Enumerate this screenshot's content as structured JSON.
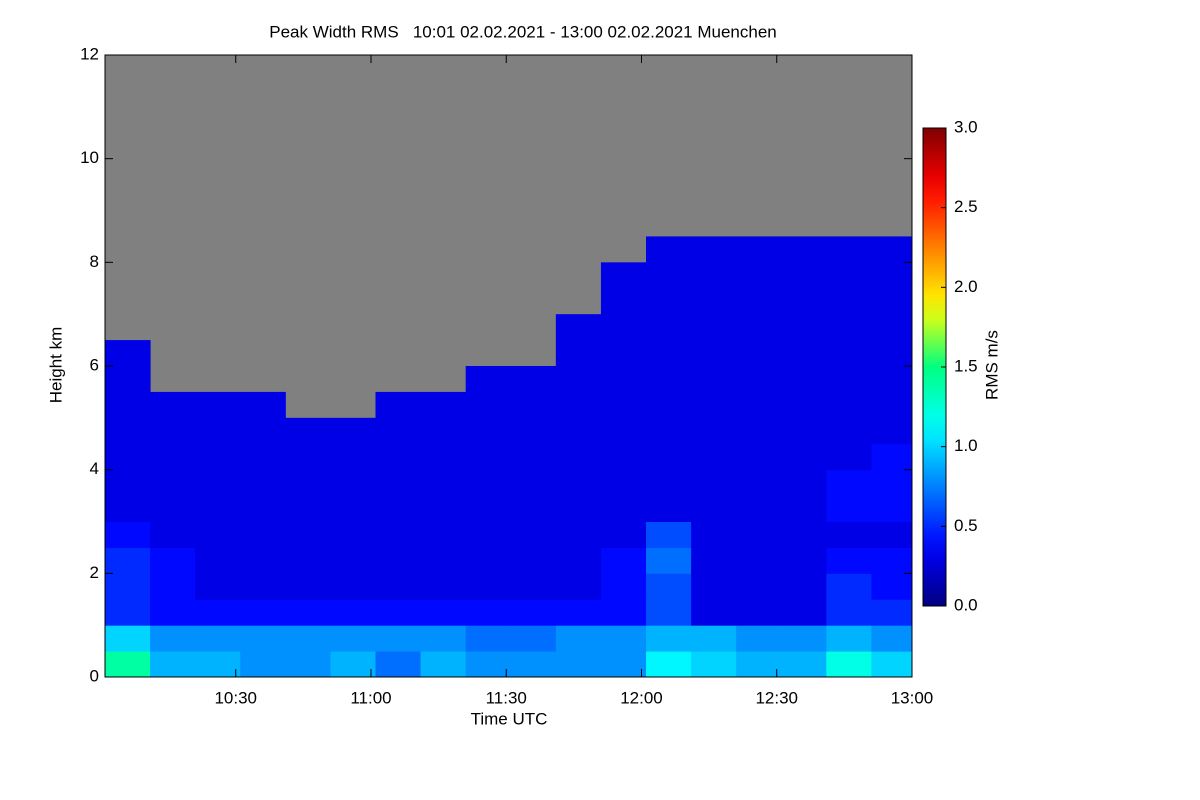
{
  "chart_data": {
    "type": "heatmap",
    "title": "Peak Width RMS   10:01 02.02.2021 - 13:00 02.02.2021 Muenchen",
    "x_label": "Time UTC",
    "y_label": "Height km",
    "colorbar_label": "RMS m/s",
    "colormap": "jet",
    "missing_color": "#808080",
    "xlim": [
      601,
      780
    ],
    "xticks": [
      {
        "value": 630,
        "label": "10:30"
      },
      {
        "value": 660,
        "label": "11:00"
      },
      {
        "value": 690,
        "label": "11:30"
      },
      {
        "value": 720,
        "label": "12:00"
      },
      {
        "value": 750,
        "label": "12:30"
      },
      {
        "value": 780,
        "label": "13:00"
      }
    ],
    "ylim": [
      0,
      12
    ],
    "yticks": [
      0,
      2,
      4,
      6,
      8,
      10,
      12
    ],
    "clim": [
      0,
      3
    ],
    "cticks": [
      {
        "value": 0,
        "label": "0.0"
      },
      {
        "value": 0.5,
        "label": "0.5"
      },
      {
        "value": 1,
        "label": "1.0"
      },
      {
        "value": 1.5,
        "label": "1.5"
      },
      {
        "value": 2,
        "label": "2.0"
      },
      {
        "value": 2.5,
        "label": "2.5"
      },
      {
        "value": 3,
        "label": "3.0"
      }
    ],
    "x_bins": [
      601,
      611,
      621,
      631,
      641,
      651,
      661,
      671,
      681,
      691,
      701,
      711,
      721,
      731,
      741,
      751,
      761,
      771,
      780
    ],
    "y_bins": [
      0,
      0.5,
      1,
      1.5,
      2,
      2.5,
      3,
      3.5,
      4,
      4.5,
      5,
      5.5,
      6,
      6.5,
      7,
      7.5,
      8,
      8.5,
      9,
      9.5,
      10,
      10.5,
      11,
      11.5,
      12
    ],
    "z": [
      [
        1.4,
        0.9,
        0.9,
        0.8,
        0.8,
        0.9,
        0.7,
        0.9,
        0.8,
        0.8,
        0.8,
        0.8,
        1.1,
        1.0,
        0.9,
        0.9,
        1.2,
        1.0
      ],
      [
        1.0,
        0.8,
        0.8,
        0.8,
        0.8,
        0.8,
        0.8,
        0.8,
        0.7,
        0.7,
        0.8,
        0.8,
        0.9,
        0.9,
        0.8,
        0.8,
        0.9,
        0.8
      ],
      [
        0.5,
        0.4,
        0.4,
        0.4,
        0.4,
        0.4,
        0.4,
        0.4,
        0.4,
        0.4,
        0.4,
        0.4,
        0.6,
        0.3,
        0.3,
        0.3,
        0.5,
        0.5
      ],
      [
        0.5,
        0.4,
        0.3,
        0.3,
        0.3,
        0.3,
        0.3,
        0.3,
        0.3,
        0.3,
        0.3,
        0.4,
        0.6,
        0.3,
        0.3,
        0.3,
        0.5,
        0.4
      ],
      [
        0.5,
        0.4,
        0.3,
        0.3,
        0.3,
        0.3,
        0.3,
        0.3,
        0.3,
        0.3,
        0.3,
        0.4,
        0.7,
        0.3,
        0.3,
        0.3,
        0.4,
        0.4
      ],
      [
        0.4,
        0.3,
        0.3,
        0.3,
        0.3,
        0.3,
        0.3,
        0.3,
        0.3,
        0.3,
        0.3,
        0.3,
        0.6,
        0.3,
        0.3,
        0.3,
        0.3,
        0.3
      ],
      [
        0.3,
        0.3,
        0.3,
        0.3,
        0.3,
        0.3,
        0.3,
        0.3,
        0.3,
        0.3,
        0.3,
        0.3,
        0.3,
        0.3,
        0.3,
        0.3,
        0.4,
        0.4
      ],
      [
        0.3,
        0.3,
        0.3,
        0.3,
        0.3,
        0.3,
        0.3,
        0.3,
        0.3,
        0.3,
        0.3,
        0.3,
        0.3,
        0.3,
        0.3,
        0.3,
        0.4,
        0.4
      ],
      [
        0.3,
        0.3,
        0.3,
        0.3,
        0.3,
        0.3,
        0.3,
        0.3,
        0.3,
        0.3,
        0.3,
        0.3,
        0.3,
        0.3,
        0.3,
        0.3,
        0.3,
        0.4
      ],
      [
        0.3,
        0.3,
        0.3,
        0.3,
        0.3,
        0.3,
        0.3,
        0.3,
        0.3,
        0.3,
        0.3,
        0.3,
        0.3,
        0.3,
        0.3,
        0.3,
        0.3,
        0.3
      ],
      [
        0.3,
        0.3,
        0.3,
        0.3,
        null,
        null,
        0.3,
        0.3,
        0.3,
        0.3,
        0.3,
        0.3,
        0.3,
        0.3,
        0.3,
        0.3,
        0.3,
        0.3
      ],
      [
        0.3,
        null,
        null,
        null,
        null,
        null,
        null,
        null,
        0.3,
        0.3,
        0.3,
        0.3,
        0.3,
        0.3,
        0.3,
        0.3,
        0.3,
        0.3
      ],
      [
        0.3,
        null,
        null,
        null,
        null,
        null,
        null,
        null,
        null,
        null,
        0.3,
        0.3,
        0.3,
        0.3,
        0.3,
        0.3,
        0.3,
        0.3
      ],
      [
        null,
        null,
        null,
        null,
        null,
        null,
        null,
        null,
        null,
        null,
        0.3,
        0.3,
        0.3,
        0.3,
        0.3,
        0.3,
        0.3,
        0.3
      ],
      [
        null,
        null,
        null,
        null,
        null,
        null,
        null,
        null,
        null,
        null,
        null,
        0.3,
        0.3,
        0.3,
        0.3,
        0.3,
        0.3,
        0.3
      ],
      [
        null,
        null,
        null,
        null,
        null,
        null,
        null,
        null,
        null,
        null,
        null,
        0.3,
        0.3,
        0.3,
        0.3,
        0.3,
        0.3,
        0.3
      ],
      [
        null,
        null,
        null,
        null,
        null,
        null,
        null,
        null,
        null,
        null,
        null,
        null,
        0.3,
        0.3,
        0.3,
        0.3,
        0.3,
        0.3
      ],
      [
        null,
        null,
        null,
        null,
        null,
        null,
        null,
        null,
        null,
        null,
        null,
        null,
        null,
        null,
        null,
        null,
        null,
        null
      ],
      [
        null,
        null,
        null,
        null,
        null,
        null,
        null,
        null,
        null,
        null,
        null,
        null,
        null,
        null,
        null,
        null,
        null,
        null
      ],
      [
        null,
        null,
        null,
        null,
        null,
        null,
        null,
        null,
        null,
        null,
        null,
        null,
        null,
        null,
        null,
        null,
        null,
        null
      ],
      [
        null,
        null,
        null,
        null,
        null,
        null,
        null,
        null,
        null,
        null,
        null,
        null,
        null,
        null,
        null,
        null,
        null,
        null
      ],
      [
        null,
        null,
        null,
        null,
        null,
        null,
        null,
        null,
        null,
        null,
        null,
        null,
        null,
        null,
        null,
        null,
        null,
        null
      ],
      [
        null,
        null,
        null,
        null,
        null,
        null,
        null,
        null,
        null,
        null,
        null,
        null,
        null,
        null,
        null,
        null,
        null,
        null
      ],
      [
        null,
        null,
        null,
        null,
        null,
        null,
        null,
        null,
        null,
        null,
        null,
        null,
        null,
        null,
        null,
        null,
        null,
        null
      ]
    ]
  }
}
